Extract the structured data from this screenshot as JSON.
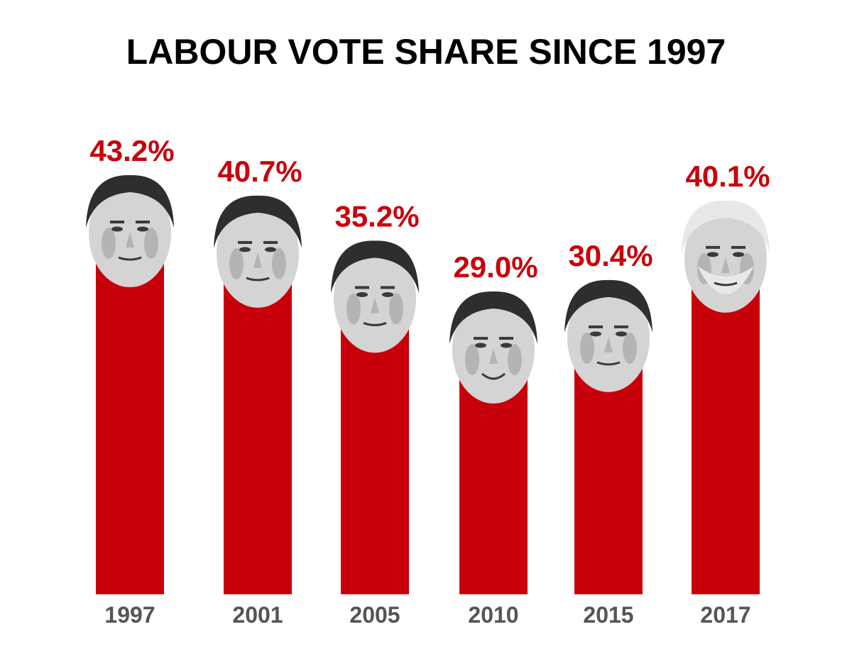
{
  "chart_data": {
    "type": "bar",
    "title": "LABOUR VOTE SHARE SINCE 1997",
    "categories": [
      "1997",
      "2001",
      "2005",
      "2010",
      "2015",
      "2017"
    ],
    "values": [
      43.2,
      40.7,
      35.2,
      29.0,
      30.4,
      40.1
    ],
    "value_labels": [
      "43.2%",
      "40.7%",
      "35.2%",
      "29.0%",
      "30.4%",
      "40.1%"
    ],
    "ylim": [
      0,
      50
    ],
    "grid": false,
    "legend": "none",
    "bar_color": "#c8000a",
    "value_label_color": "#c8000a",
    "category_label_color": "#555555",
    "title_color": "#000000",
    "bar_decoration": [
      "leader-portrait",
      "leader-portrait",
      "leader-portrait",
      "leader-portrait",
      "leader-portrait",
      "leader-portrait"
    ]
  }
}
